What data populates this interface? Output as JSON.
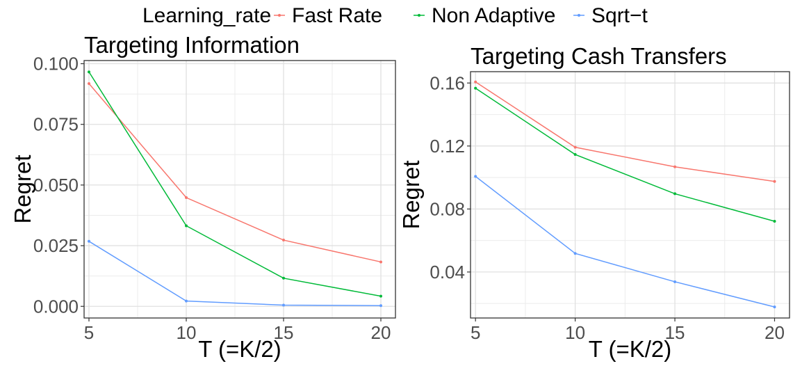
{
  "legend": {
    "title": "Learning_rate",
    "entries": [
      {
        "name": "Fast Rate",
        "color": "#F8766D"
      },
      {
        "name": "Non Adaptive",
        "color": "#00BA38"
      },
      {
        "name": "Sqrt−t",
        "color": "#619CFF"
      }
    ],
    "position": "top"
  },
  "chart_data": [
    {
      "type": "line",
      "title": "Targeting Information",
      "xlabel": "T (=K/2)",
      "ylabel": "Regret",
      "x": [
        5,
        10,
        15,
        20
      ],
      "xticks": [
        5,
        10,
        15,
        20
      ],
      "xtick_labels": [
        "5",
        "10",
        "15",
        "20"
      ],
      "yticks": [
        0.0,
        0.025,
        0.05,
        0.075,
        0.1
      ],
      "ytick_labels": [
        "0.000",
        "0.025",
        "0.050",
        "0.075",
        "0.100"
      ],
      "xlim": [
        4.75,
        20.75
      ],
      "ylim": [
        -0.0048,
        0.1013
      ],
      "grid": true,
      "series": [
        {
          "name": "Fast Rate",
          "values": [
            0.0918,
            0.0448,
            0.0273,
            0.0183
          ]
        },
        {
          "name": "Non Adaptive",
          "values": [
            0.0966,
            0.0332,
            0.0116,
            0.0042
          ]
        },
        {
          "name": "Sqrt−t",
          "values": [
            0.0268,
            0.0022,
            0.0005,
            0.0003
          ]
        }
      ]
    },
    {
      "type": "line",
      "title": "Targeting Cash Transfers",
      "xlabel": "T (=K/2)",
      "ylabel": "Regret",
      "x": [
        5,
        10,
        15,
        20
      ],
      "xticks": [
        5,
        10,
        15,
        20
      ],
      "xtick_labels": [
        "5",
        "10",
        "15",
        "20"
      ],
      "yticks": [
        0.04,
        0.08,
        0.12,
        0.16
      ],
      "ytick_labels": [
        "0.04",
        "0.08",
        "0.12",
        "0.16"
      ],
      "xlim": [
        4.75,
        20.75
      ],
      "ylim": [
        0.0108,
        0.1672
      ],
      "grid": true,
      "series": [
        {
          "name": "Fast Rate",
          "values": [
            0.1607,
            0.1192,
            0.1068,
            0.0975
          ]
        },
        {
          "name": "Non Adaptive",
          "values": [
            0.1567,
            0.1146,
            0.0897,
            0.0722
          ]
        },
        {
          "name": "Sqrt−t",
          "values": [
            0.1007,
            0.0518,
            0.0338,
            0.0178
          ]
        }
      ]
    }
  ]
}
